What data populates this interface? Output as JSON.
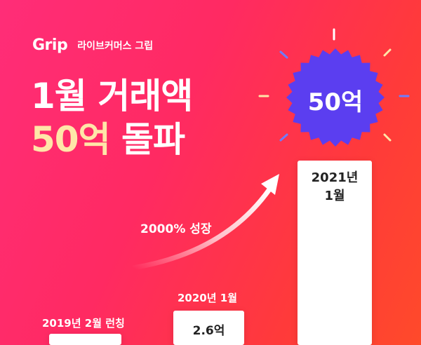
{
  "brand": {
    "logo": "Grip",
    "name": "라이브커머스 그립"
  },
  "headline": {
    "line1": "1월 거래액",
    "line2_highlight": "50억",
    "line2_rest": "돌파"
  },
  "badge": {
    "value": "50억"
  },
  "growth_label": "2000% 성장",
  "bars": [
    {
      "caption": "2019년 2월 런칭",
      "value": ""
    },
    {
      "caption": "2020년 1월",
      "value": "2.6억"
    },
    {
      "caption": "2021년 1월",
      "value": ""
    }
  ],
  "colors": {
    "background": "#ff2d6a",
    "badge": "#5b3ef0",
    "highlight": "#ffe6a8"
  }
}
